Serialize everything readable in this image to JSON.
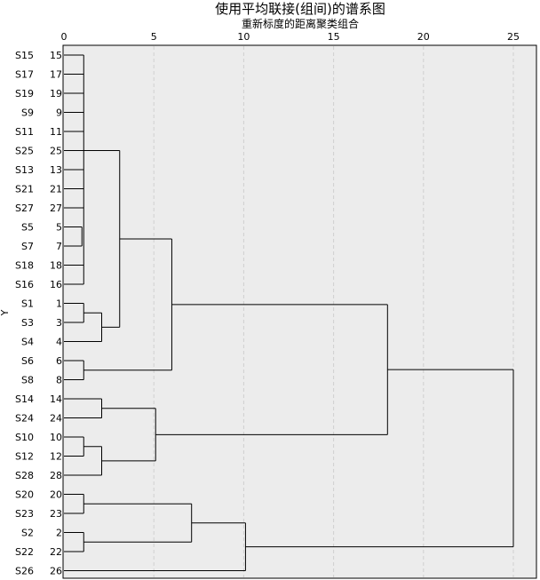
{
  "chart_data": {
    "type": "dendrogram",
    "title": "使用平均联接(组间)的谱系图",
    "xlabel": "重新标度的距离聚类组合",
    "ylabel": "Y",
    "xlim": [
      0,
      25
    ],
    "xticks": [
      0,
      5,
      10,
      15,
      20,
      25
    ],
    "grid": true,
    "leaves": [
      {
        "name": "S15",
        "id": "15"
      },
      {
        "name": "S17",
        "id": "17"
      },
      {
        "name": "S19",
        "id": "19"
      },
      {
        "name": "S9",
        "id": "9"
      },
      {
        "name": "S11",
        "id": "11"
      },
      {
        "name": "S25",
        "id": "25"
      },
      {
        "name": "S13",
        "id": "13"
      },
      {
        "name": "S21",
        "id": "21"
      },
      {
        "name": "S27",
        "id": "27"
      },
      {
        "name": "S5",
        "id": "5"
      },
      {
        "name": "S7",
        "id": "7"
      },
      {
        "name": "S18",
        "id": "18"
      },
      {
        "name": "S16",
        "id": "16"
      },
      {
        "name": "S1",
        "id": "1"
      },
      {
        "name": "S3",
        "id": "3"
      },
      {
        "name": "S4",
        "id": "4"
      },
      {
        "name": "S6",
        "id": "6"
      },
      {
        "name": "S8",
        "id": "8"
      },
      {
        "name": "S14",
        "id": "14"
      },
      {
        "name": "S24",
        "id": "24"
      },
      {
        "name": "S10",
        "id": "10"
      },
      {
        "name": "S12",
        "id": "12"
      },
      {
        "name": "S28",
        "id": "28"
      },
      {
        "name": "S20",
        "id": "20"
      },
      {
        "name": "S23",
        "id": "23"
      },
      {
        "name": "S2",
        "id": "2"
      },
      {
        "name": "S22",
        "id": "22"
      },
      {
        "name": "S26",
        "id": "26"
      }
    ],
    "merges": [
      {
        "children": [
          "L0",
          "L1",
          "L2",
          "L3",
          "L4",
          "L5",
          "L6",
          "L7",
          "L8",
          "L9",
          "L10",
          "L11",
          "L12"
        ],
        "height": 1.1,
        "id": "A"
      },
      {
        "children": [
          "A",
          "N2"
        ],
        "height": 2.1,
        "id": "A2"
      },
      {
        "children": [
          "L9",
          "L10"
        ],
        "height": 1.0,
        "id": "N2"
      },
      {
        "children": [
          "L13",
          "L14"
        ],
        "height": 1.1,
        "id": "B1"
      },
      {
        "children": [
          "B1",
          "L15"
        ],
        "height": 2.1,
        "id": "B2"
      },
      {
        "children": [
          "A2",
          "B2"
        ],
        "height": 3.1,
        "id": "AB"
      },
      {
        "children": [
          "L16",
          "L17"
        ],
        "height": 1.1,
        "id": "C"
      },
      {
        "children": [
          "AB",
          "C"
        ],
        "height": 6.0,
        "id": "ABC"
      },
      {
        "children": [
          "L18",
          "L19"
        ],
        "height": 2.1,
        "id": "D"
      },
      {
        "children": [
          "L20",
          "L21"
        ],
        "height": 1.1,
        "id": "E1"
      },
      {
        "children": [
          "E1",
          "L22"
        ],
        "height": 2.1,
        "id": "E2"
      },
      {
        "children": [
          "D",
          "E2"
        ],
        "height": 5.1,
        "id": "DE"
      },
      {
        "children": [
          "ABC",
          "DE"
        ],
        "height": 18.0,
        "id": "TOP1"
      },
      {
        "children": [
          "L23",
          "L24"
        ],
        "height": 1.1,
        "id": "F"
      },
      {
        "children": [
          "L25",
          "L26"
        ],
        "height": 1.1,
        "id": "G"
      },
      {
        "children": [
          "F",
          "G"
        ],
        "height": 7.1,
        "id": "FG"
      },
      {
        "children": [
          "FG",
          "L27"
        ],
        "height": 10.1,
        "id": "FGH"
      },
      {
        "children": [
          "TOP1",
          "FGH"
        ],
        "height": 25.0,
        "id": "ROOT"
      }
    ]
  }
}
